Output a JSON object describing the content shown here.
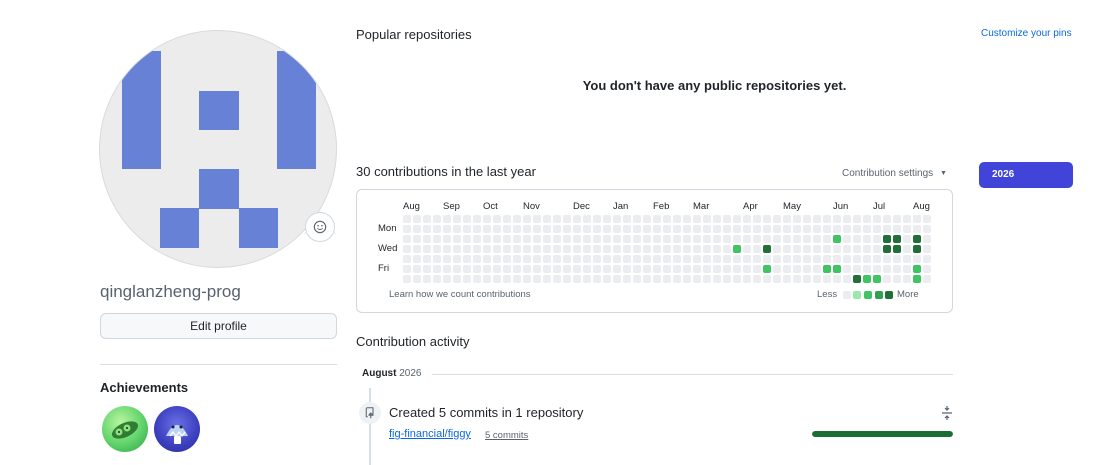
{
  "profile": {
    "username": "qinglanzheng-prog",
    "edit_label": "Edit profile",
    "achievements_title": "Achievements",
    "badges": [
      {
        "name": "pair-extraordinaire-badge",
        "color": "#5fd36a"
      },
      {
        "name": "shark-badge",
        "color": "#3b3fbe"
      }
    ]
  },
  "popular": {
    "title": "Popular repositories",
    "customize_label": "Customize your pins",
    "empty_message": "You don't have any public repositories yet."
  },
  "contributions": {
    "title": "30 contributions in the last year",
    "settings_label": "Contribution settings",
    "year_button": "2026",
    "months": [
      "Aug",
      "Sep",
      "Oct",
      "Nov",
      "Dec",
      "Jan",
      "Feb",
      "Mar",
      "Apr",
      "May",
      "Jun",
      "Jul",
      "Aug"
    ],
    "days": [
      "Mon",
      "Wed",
      "Fri"
    ],
    "learn_link": "Learn how we count contributions",
    "less_label": "Less",
    "more_label": "More",
    "colors": [
      "#ebedf0",
      "#9be9a8",
      "#40c463",
      "#30a14e",
      "#216e39"
    ],
    "active_cells": [
      [
        33,
        3,
        2
      ],
      [
        36,
        3,
        4
      ],
      [
        36,
        5,
        2
      ],
      [
        43,
        2,
        2
      ],
      [
        43,
        5,
        2
      ],
      [
        42,
        5,
        2
      ],
      [
        45,
        6,
        4
      ],
      [
        46,
        6,
        2
      ],
      [
        47,
        6,
        2
      ],
      [
        48,
        2,
        4
      ],
      [
        48,
        3,
        4
      ],
      [
        49,
        2,
        4
      ],
      [
        49,
        3,
        4
      ],
      [
        51,
        2,
        4
      ],
      [
        51,
        3,
        4
      ],
      [
        51,
        5,
        2
      ],
      [
        51,
        6,
        2
      ],
      [
        51,
        7,
        4
      ]
    ]
  },
  "activity": {
    "title": "Contribution activity",
    "month": "August",
    "year": "2026",
    "summary": "Created 5 commits in 1 repository",
    "repo": "fig-financial/figgy",
    "commit_count": "5 commits",
    "progress": 1.0
  }
}
